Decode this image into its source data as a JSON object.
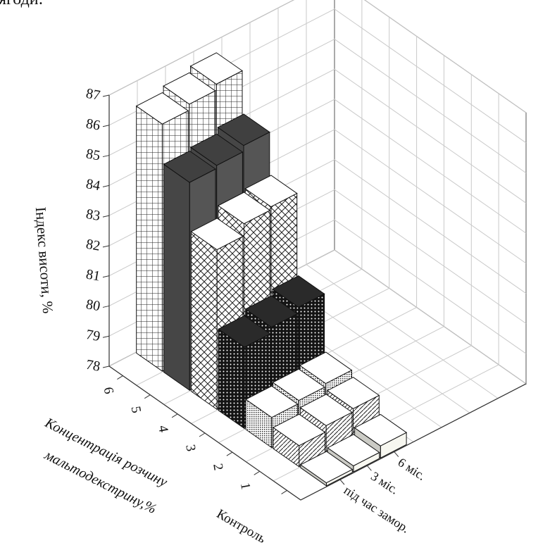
{
  "page": {
    "partial_text_top": "ягоди:"
  },
  "chart_data": {
    "type": "bar",
    "view": "3d",
    "grid": true,
    "zlabel": "Індекс висоти, %",
    "zlim": [
      78,
      87
    ],
    "z_ticks": [
      78,
      79,
      80,
      81,
      82,
      83,
      84,
      85,
      86,
      87
    ],
    "xlabel": "Концентрація розчину мальтодекстрину,%",
    "x_categories": [
      "6",
      "5",
      "4",
      "3",
      "2",
      "1",
      "Контроль"
    ],
    "y_categories": [
      "під час замор.",
      "3 міс.",
      "6 міс."
    ],
    "series": [
      {
        "category": "6",
        "pattern": "grid",
        "fill": "#ffffff",
        "values": [
          86.2,
          86.4,
          86.6
        ]
      },
      {
        "category": "5",
        "pattern": "solid",
        "fill": "#555555",
        "values": [
          84.9,
          85.0,
          85.2
        ]
      },
      {
        "category": "4",
        "pattern": "crosshatch",
        "fill": "#ffffff",
        "values": [
          83.3,
          83.7,
          83.8
        ]
      },
      {
        "category": "3",
        "pattern": "dense-dots",
        "fill": "#1a1a1a",
        "values": [
          80.7,
          80.9,
          81.1
        ]
      },
      {
        "category": "2",
        "pattern": "fine-dots",
        "fill": "#ffffff",
        "values": [
          79.0,
          79.1,
          79.2
        ]
      },
      {
        "category": "1",
        "pattern": "diagonal",
        "fill": "#ffffff",
        "values": [
          78.7,
          78.9,
          79.0
        ]
      },
      {
        "category": "Контроль",
        "pattern": "none",
        "fill": "#f7f7f0",
        "values": [
          78.1,
          78.2,
          78.4
        ]
      }
    ]
  }
}
